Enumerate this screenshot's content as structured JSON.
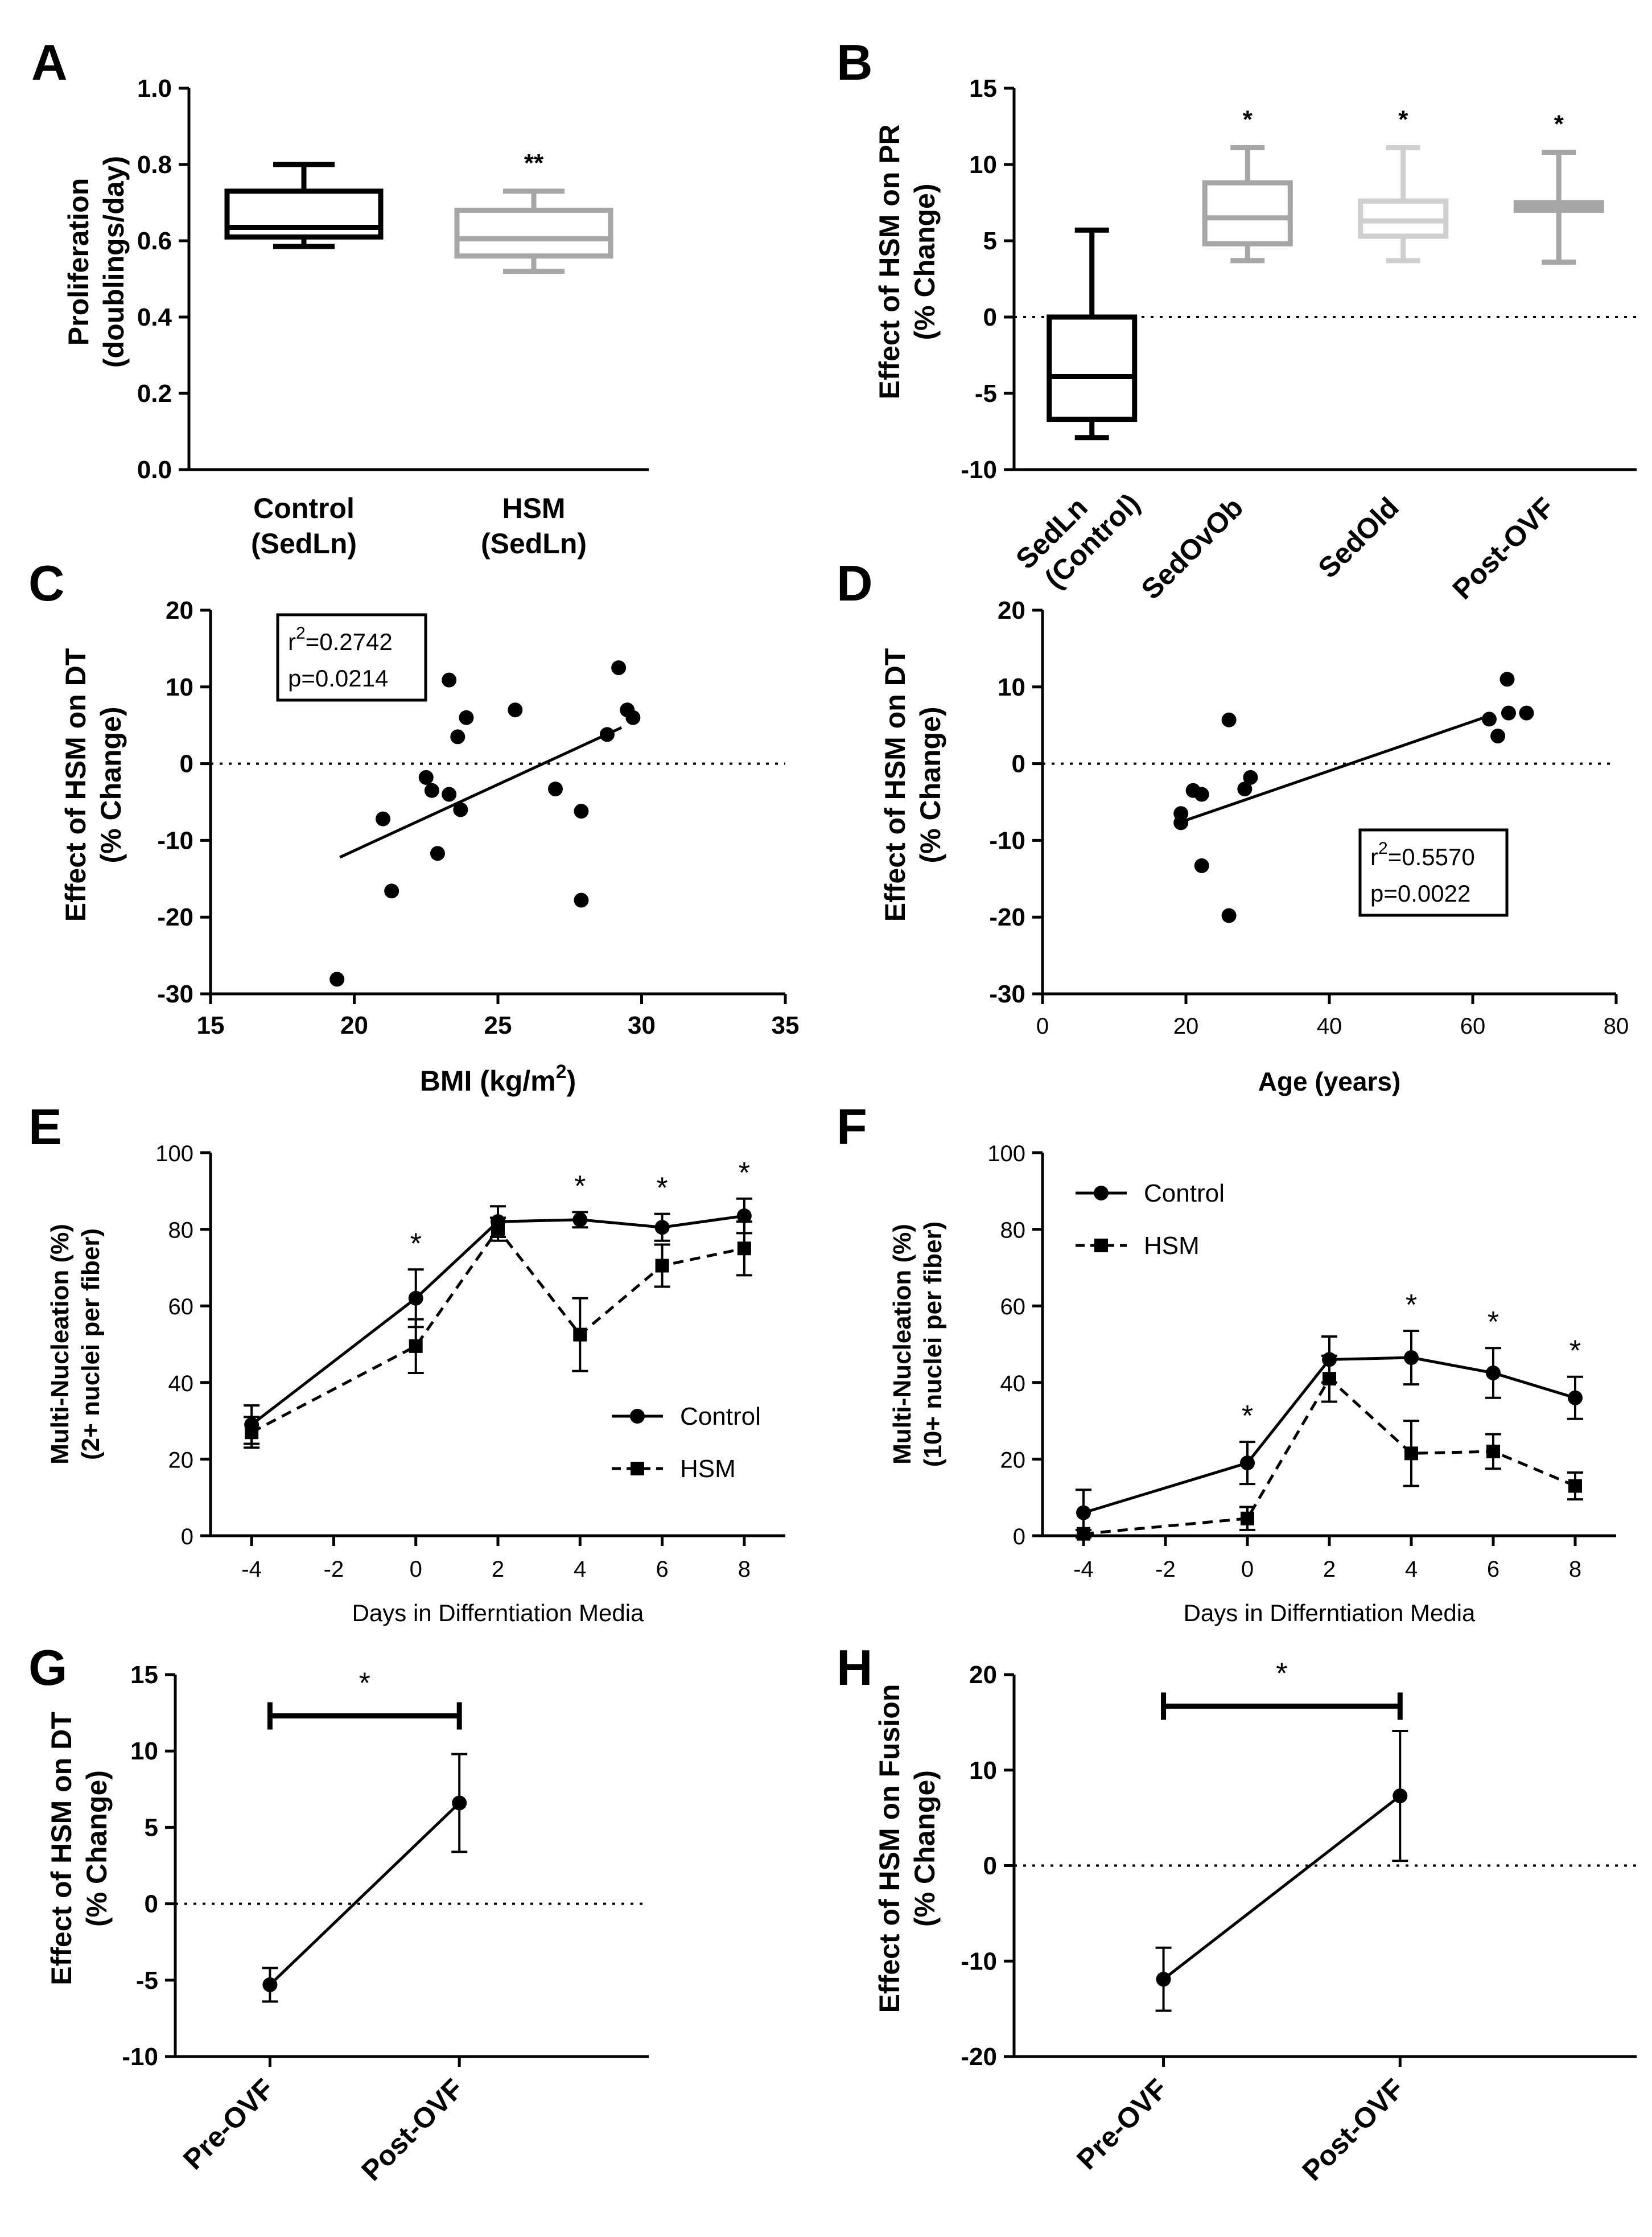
{
  "chart_data": [
    {
      "panel": "A",
      "type": "box",
      "ylabel": [
        "Proliferation",
        "(doublings/day)"
      ],
      "ylim": [
        0.0,
        1.0
      ],
      "yticks": [
        "0.0",
        "0.2",
        "0.4",
        "0.6",
        "0.8",
        "1.0"
      ],
      "categories": [
        "Control (SedLn)",
        "HSM (SedLn)"
      ],
      "category_lines": [
        [
          "Control",
          "(SedLn)"
        ],
        [
          "HSM",
          "(SedLn)"
        ]
      ],
      "boxes": [
        {
          "min": 0.585,
          "q1": 0.61,
          "median": 0.635,
          "q3": 0.73,
          "max": 0.8,
          "color": "#000000"
        },
        {
          "min": 0.52,
          "q1": 0.56,
          "median": 0.605,
          "q3": 0.68,
          "max": 0.73,
          "color": "#a6a6a6"
        }
      ],
      "significance": [
        "",
        "**"
      ]
    },
    {
      "panel": "B",
      "type": "box",
      "ylabel": [
        "Effect of HSM on PR",
        "(% Change)"
      ],
      "ylim": [
        -10,
        15
      ],
      "yticks": [
        "-10",
        "-5",
        "0",
        "5",
        "10",
        "15"
      ],
      "zero_line": true,
      "categories": [
        "SedLn (Control)",
        "SedOvOb",
        "SedOld",
        "Post-OVF"
      ],
      "category_lines": [
        [
          "SedLn",
          "(Control)"
        ],
        [
          "SedOvOb"
        ],
        [
          "SedOld"
        ],
        [
          "Post-OVF"
        ]
      ],
      "boxes": [
        {
          "min": -7.9,
          "q1": -6.7,
          "median": -3.9,
          "q3": 0.0,
          "max": 5.7,
          "color": "#000000"
        },
        {
          "min": 3.7,
          "q1": 4.8,
          "median": 6.5,
          "q3": 8.8,
          "max": 11.1,
          "color": "#a6a6a6"
        },
        {
          "min": 3.7,
          "q1": 5.3,
          "median": 6.3,
          "q3": 7.6,
          "max": 11.1,
          "color": "#cfcfcf"
        },
        {
          "min": 3.6,
          "q1": 7.0,
          "median": 7.2,
          "q3": 7.5,
          "max": 10.8,
          "color": "#a6a6a6"
        }
      ],
      "significance": [
        "",
        "*",
        "*",
        "*"
      ]
    },
    {
      "panel": "C",
      "type": "scatter",
      "ylabel": [
        "Effect of HSM on DT",
        "(% Change)"
      ],
      "xlabel": "BMI (kg/m",
      "xlabel_sup": "2",
      "xlabel_end": ")",
      "xlim": [
        15,
        35
      ],
      "ylim": [
        -30,
        20
      ],
      "xticks": [
        "15",
        "20",
        "25",
        "30",
        "35"
      ],
      "yticks": [
        "-30",
        "-20",
        "-10",
        "0",
        "10",
        "20"
      ],
      "zero_line": true,
      "points": [
        [
          19.4,
          -28.1
        ],
        [
          21.0,
          -7.2
        ],
        [
          21.3,
          -16.6
        ],
        [
          22.5,
          -1.8
        ],
        [
          22.7,
          -3.5
        ],
        [
          22.9,
          -11.7
        ],
        [
          23.3,
          -4.0
        ],
        [
          23.3,
          10.9
        ],
        [
          23.6,
          3.5
        ],
        [
          23.7,
          -6.0
        ],
        [
          23.9,
          6.0
        ],
        [
          25.6,
          7.0
        ],
        [
          27.0,
          -3.3
        ],
        [
          27.9,
          -6.2
        ],
        [
          27.9,
          -17.8
        ],
        [
          28.8,
          3.8
        ],
        [
          29.2,
          12.5
        ],
        [
          29.5,
          7.0
        ],
        [
          29.7,
          6.0
        ]
      ],
      "fit": {
        "x1": 19.5,
        "y1": -12.2,
        "x2": 29.3,
        "y2": 4.7
      },
      "stats": [
        "r",
        "2",
        "=0.2742",
        "p=0.0214"
      ]
    },
    {
      "panel": "D",
      "type": "scatter",
      "ylabel": [
        "Effect of HSM on DT",
        "(% Change)"
      ],
      "xlabel": "Age (years)",
      "xlim": [
        0,
        80
      ],
      "ylim": [
        -30,
        20
      ],
      "xticks": [
        "0",
        "20",
        "40",
        "60",
        "80"
      ],
      "yticks": [
        "-30",
        "-20",
        "-10",
        "0",
        "10",
        "20"
      ],
      "zero_line": true,
      "points": [
        [
          19.3,
          -6.5
        ],
        [
          19.3,
          -7.7
        ],
        [
          21.0,
          -3.5
        ],
        [
          22.2,
          -4.0
        ],
        [
          22.2,
          -13.3
        ],
        [
          26.0,
          5.7
        ],
        [
          26.0,
          -19.8
        ],
        [
          28.2,
          -3.3
        ],
        [
          29.0,
          -1.8
        ],
        [
          62.3,
          5.8
        ],
        [
          63.5,
          3.6
        ],
        [
          64.8,
          11.0
        ],
        [
          65.0,
          6.6
        ],
        [
          67.5,
          6.6
        ]
      ],
      "fit": {
        "x1": 19.3,
        "y1": -7.6,
        "x2": 62.5,
        "y2": 6.3
      },
      "stats": [
        "r",
        "2",
        "=0.5570",
        "p=0.0022"
      ]
    },
    {
      "panel": "E",
      "type": "line",
      "ylabel": [
        "Multi-Nucleation (%)",
        "(2+ nuclei per fiber)"
      ],
      "xlabel": "Days in Differntiation Media",
      "xlim": [
        -5,
        9
      ],
      "ylim": [
        0,
        100
      ],
      "xticks": [
        "-4",
        "-2",
        "0",
        "2",
        "4",
        "6",
        "8"
      ],
      "yticks": [
        "0",
        "20",
        "40",
        "60",
        "80",
        "100"
      ],
      "series": [
        {
          "name": "Control",
          "marker": "circle",
          "dashed": false,
          "x": [
            -4,
            0,
            2,
            4,
            6,
            8
          ],
          "values": [
            29,
            62,
            82,
            82.5,
            80.5,
            83.5
          ],
          "err": [
            5,
            7.5,
            4,
            2,
            3.5,
            4.5
          ]
        },
        {
          "name": "HSM",
          "marker": "square",
          "dashed": true,
          "x": [
            -4,
            0,
            2,
            4,
            6,
            8
          ],
          "values": [
            27,
            49.5,
            80,
            52.5,
            70.5,
            75
          ],
          "err": [
            4,
            7,
            3,
            9.5,
            5.5,
            7
          ]
        }
      ],
      "significance": [
        {
          "x": 0,
          "label": "*"
        },
        {
          "x": 4,
          "label": "*"
        },
        {
          "x": 6,
          "label": "*"
        },
        {
          "x": 8,
          "label": "*"
        }
      ],
      "legend": "bottom-right"
    },
    {
      "panel": "F",
      "type": "line",
      "ylabel": [
        "Multi-Nucleation (%)",
        "(10+ nuclei per fiber)"
      ],
      "xlabel": "Days in Differntiation Media",
      "xlim": [
        -5,
        9
      ],
      "ylim": [
        0,
        100
      ],
      "xticks": [
        "-4",
        "-2",
        "0",
        "2",
        "4",
        "6",
        "8"
      ],
      "yticks": [
        "0",
        "20",
        "40",
        "60",
        "80",
        "100"
      ],
      "series": [
        {
          "name": "Control",
          "marker": "circle",
          "dashed": false,
          "x": [
            -4,
            0,
            2,
            4,
            6,
            8
          ],
          "values": [
            6,
            19,
            46,
            46.5,
            42.5,
            36
          ],
          "err": [
            6,
            5.5,
            6,
            7,
            6.5,
            5.5
          ]
        },
        {
          "name": "HSM",
          "marker": "square",
          "dashed": true,
          "x": [
            -4,
            0,
            2,
            4,
            6,
            8
          ],
          "values": [
            0.5,
            4.5,
            41,
            21.5,
            22,
            13
          ],
          "err": [
            1,
            3,
            6,
            8.5,
            4.5,
            3.5
          ]
        }
      ],
      "significance": [
        {
          "x": 0,
          "label": "*"
        },
        {
          "x": 4,
          "label": "*"
        },
        {
          "x": 6,
          "label": "*"
        },
        {
          "x": 8,
          "label": "*"
        }
      ],
      "legend": "top-left"
    },
    {
      "panel": "G",
      "type": "line",
      "ylabel": [
        "Effect of HSM on DT",
        "(% Change)"
      ],
      "ylim": [
        -10,
        15
      ],
      "yticks": [
        "-10",
        "-5",
        "0",
        "5",
        "10",
        "15"
      ],
      "zero_line": true,
      "categories": [
        "Pre-OVF",
        "Post-OVF"
      ],
      "values": [
        -5.3,
        6.6
      ],
      "err": [
        1.1,
        3.2
      ],
      "bracket": {
        "y": 12.3,
        "label": "*"
      }
    },
    {
      "panel": "H",
      "type": "line",
      "ylabel": [
        "Effect of HSM on Fusion",
        "(% Change)"
      ],
      "ylim": [
        -20,
        20
      ],
      "yticks": [
        "-20",
        "-10",
        "0",
        "10",
        "20"
      ],
      "zero_line": true,
      "categories": [
        "Pre-OVF",
        "Post-OVF"
      ],
      "values": [
        -11.9,
        7.3
      ],
      "err": [
        3.3,
        6.8
      ],
      "bracket": {
        "y": 16.7,
        "label": "*"
      }
    }
  ]
}
